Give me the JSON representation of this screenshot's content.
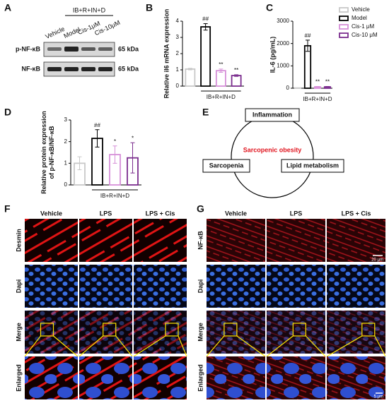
{
  "panel_labels": [
    "A",
    "B",
    "C",
    "D",
    "E",
    "F",
    "G"
  ],
  "blot": {
    "lanes": [
      "Vehicle",
      "Model",
      "Cis-1μM",
      "Cis-10μM"
    ],
    "group_label": "IB+R+IN+D",
    "rows": [
      {
        "name": "p-NF-κB",
        "size": "65 kDa"
      },
      {
        "name": "NF-κB",
        "size": "65 kDa"
      }
    ]
  },
  "chart_data": [
    {
      "type": "bar",
      "ylabel": [
        "Relative il6 mRNA expression"
      ],
      "values": [
        1.05,
        3.65,
        0.95,
        0.65
      ],
      "errors": [
        0.05,
        0.2,
        0.1,
        0.05
      ],
      "colors": [
        "#c8c8c8",
        "#000000",
        "#d68fd8",
        "#7b2d8e"
      ],
      "significance": [
        null,
        "##",
        "**",
        "**"
      ],
      "group_label": "IB+R+IN+D",
      "ylim": [
        0,
        4
      ],
      "yticks": [
        0,
        1,
        2,
        3,
        4
      ]
    },
    {
      "type": "bar",
      "ylabel": [
        "IL-6 (pg/mL)"
      ],
      "series": [
        {
          "name": "Vehicle",
          "color": "#c8c8c8",
          "values": [
            10
          ],
          "errors": [
            5
          ]
        },
        {
          "name": "Model",
          "color": "#000000",
          "values": [
            1900
          ],
          "errors": [
            250
          ]
        },
        {
          "name": "Cis-1 μM",
          "color": "#d68fd8",
          "values": [
            60
          ],
          "errors": [
            20
          ]
        },
        {
          "name": "Cis-10 μM",
          "color": "#7b2d8e",
          "values": [
            60
          ],
          "errors": [
            20
          ]
        }
      ],
      "significance": [
        null,
        "##",
        "**",
        "**"
      ],
      "group_label": "IB+R+IN+D",
      "ylim": [
        0,
        3000
      ],
      "yticks": [
        0,
        1000,
        2000,
        3000
      ]
    },
    {
      "type": "bar",
      "ylabel": [
        "Relative protein expression",
        "of p-NF-κB/NF-κB"
      ],
      "values": [
        1.0,
        2.15,
        1.4,
        1.25
      ],
      "errors": [
        0.3,
        0.4,
        0.4,
        0.7
      ],
      "colors": [
        "#c8c8c8",
        "#000000",
        "#d68fd8",
        "#7b2d8e"
      ],
      "significance": [
        null,
        "##",
        "*",
        "*"
      ],
      "group_label": "IB+R+IN+D",
      "ylim": [
        0,
        3
      ],
      "yticks": [
        0,
        1,
        2,
        3
      ]
    }
  ],
  "diagram": {
    "center": "Sarcopenic obesity",
    "nodes": [
      "Inflammation",
      "Sarcopenia",
      "Lipid metabolism"
    ]
  },
  "panel_f": {
    "columns": [
      "Vehicle",
      "LPS",
      "LPS + Cis"
    ],
    "rows": [
      "Desmin",
      "Dapi",
      "Merge",
      "Enlarged"
    ]
  },
  "panel_g": {
    "columns": [
      "Vehicle",
      "LPS",
      "LPS + Cis"
    ],
    "rows": [
      "NF-κB",
      "Dapi",
      "Merge",
      "Enlarged"
    ],
    "scale_bars": [
      "20 μm",
      "5 μm"
    ]
  }
}
